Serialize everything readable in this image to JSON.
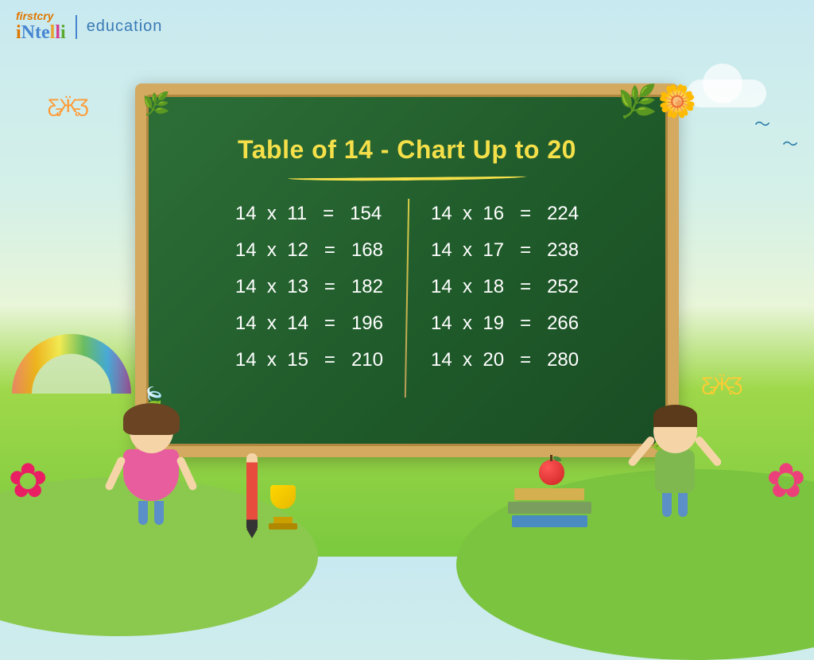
{
  "logo": {
    "brand_top": "firstcry",
    "brand_main": "iNtelli",
    "tagline": "education"
  },
  "board": {
    "title": "Table of 14 - Chart Up to 20",
    "title_color": "#f5e04a",
    "board_bg": "#1f5a2a",
    "frame_color": "#d4a960",
    "text_color": "#ffffff",
    "font_size_title": 32,
    "font_size_rows": 24
  },
  "table": {
    "base": 14,
    "left": [
      {
        "m": 11,
        "r": 154
      },
      {
        "m": 12,
        "r": 168
      },
      {
        "m": 13,
        "r": 182
      },
      {
        "m": 14,
        "r": 196
      },
      {
        "m": 15,
        "r": 210
      }
    ],
    "right": [
      {
        "m": 16,
        "r": 224
      },
      {
        "m": 17,
        "r": 238
      },
      {
        "m": 18,
        "r": 252
      },
      {
        "m": 19,
        "r": 266
      },
      {
        "m": 20,
        "r": 280
      }
    ]
  },
  "colors": {
    "sky": "#c8e9f0",
    "grass": "#7bc93e",
    "accent_yellow": "#f5e04a",
    "pencil": "#e74c3c",
    "trophy": "#ffd700",
    "apple": "#cc2222"
  }
}
